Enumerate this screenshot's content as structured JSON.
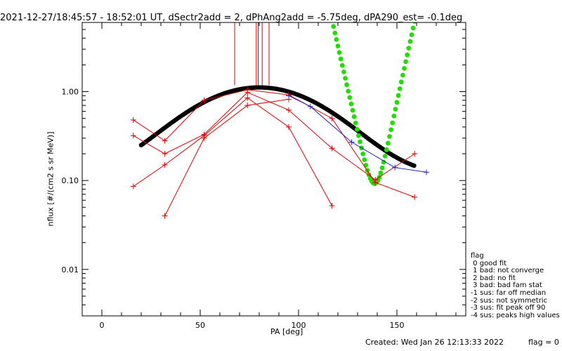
{
  "title": "2021-12-27/18:45:57 - 18:52:01 UT, dSectr2add = 2, dPhAng2add = -5.75deg, dPA290_est=  -0.1deg",
  "footer": {
    "created": "Created: Wed Jan 26 12:13:33 2022",
    "flag": "flag = 0"
  },
  "legend": {
    "title": "flag",
    "items": [
      " 0 good fit",
      " 1 bad: not converge",
      " 2 bad: no fit",
      " 3 bad: bad fam stat",
      "-1 sus: far off median",
      "-2 sus: not symmetric",
      "-3 sus: fit peak off 90",
      "-4 sus: peaks high values"
    ]
  },
  "colors": {
    "measured": "#dd0000",
    "extra": "#2020c0",
    "fit_black": "#000000",
    "fit_green": "#22dd00"
  },
  "chart_data": {
    "type": "line",
    "title": "2021-12-27/18:45:57 - 18:52:01 UT, dSectr2add = 2, dPhAng2add = -5.75deg, dPA290_est=  -0.1deg",
    "xlabel": "PA [deg]",
    "ylabel": "nflux [#/(cm2 s sr MeV)]",
    "xlim": [
      -10,
      185
    ],
    "ylim": [
      0.003,
      6.0
    ],
    "ylog": true,
    "xticks": [
      0,
      50,
      100,
      150
    ],
    "xtick_labels": [
      "0",
      "50",
      "100",
      "150"
    ],
    "yticks": [
      0.01,
      0.1,
      1.0
    ],
    "ytick_labels": [
      "0.01",
      "0.10",
      "1.00"
    ],
    "series": [
      {
        "style": "measured",
        "x": [
          16,
          32,
          52,
          74,
          95,
          117,
          139,
          159
        ],
        "y": [
          0.48,
          0.28,
          0.8,
          1.05,
          0.92,
          0.5,
          0.095,
          0.065
        ]
      },
      {
        "style": "measured",
        "x": [
          16,
          32,
          52,
          74,
          95,
          117,
          139,
          159
        ],
        "y": [
          0.32,
          0.2,
          0.33,
          0.98,
          0.62,
          0.23,
          0.102,
          0.2
        ]
      },
      {
        "style": "measured",
        "x": [
          16,
          32,
          52,
          74,
          95,
          117
        ],
        "y": [
          0.086,
          0.15,
          0.32,
          0.85,
          0.4,
          0.052
        ]
      },
      {
        "style": "measured",
        "x": [
          32,
          52,
          74,
          95
        ],
        "y": [
          0.04,
          0.3,
          0.7,
          0.82
        ]
      },
      {
        "style": "extra",
        "x": [
          95,
          106,
          127,
          149,
          165
        ],
        "y": [
          0.9,
          0.68,
          0.27,
          0.14,
          0.124
        ]
      }
    ],
    "peak_markers": [
      {
        "x": 67.5,
        "color": "#dd0000"
      },
      {
        "x": 78.5,
        "color": "#dd0000"
      },
      {
        "x": 79.5,
        "color": "#2020c0"
      },
      {
        "x": 81.5,
        "color": "#dd0000"
      },
      {
        "x": 85.0,
        "color": "#dd0000"
      }
    ],
    "fits": [
      {
        "style": "fit_black",
        "func": "gaussian",
        "x_range": [
          20,
          159
        ],
        "peak": 1.0,
        "center": 80,
        "sigma": 30,
        "floor": 0.115
      },
      {
        "style": "fit_green",
        "func": "gaussian_cosh",
        "x_range": [
          21,
          159
        ],
        "peak": 0.95,
        "center": 80,
        "sigma": 22,
        "floor": 0.064,
        "cosh_a": 1.55,
        "cosh_center": 138,
        "cosh_k": 0.23
      }
    ]
  }
}
